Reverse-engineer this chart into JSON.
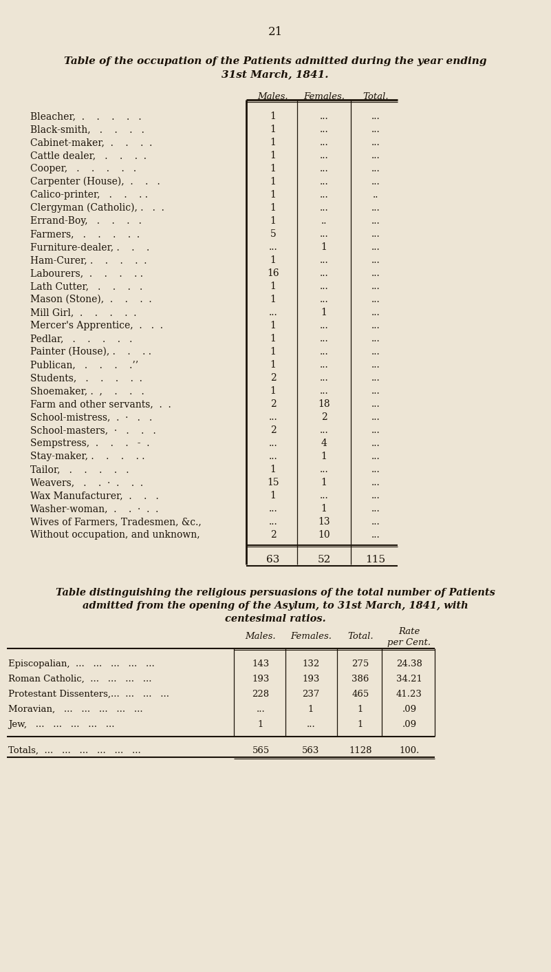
{
  "page_number": "21",
  "title1": "Table of the occupation of the Patients admitted during the year ending",
  "title2": "31st March, 1841.",
  "bg_color": "#ede5d5",
  "text_color": "#1a1208",
  "table1_rows": [
    [
      "Bleacher,  .    .    .    .   .",
      "1",
      "...",
      "..."
    ],
    [
      "Black-smith,   .    .    .   .",
      "1",
      "...",
      "..."
    ],
    [
      "Cabinet-maker,  .    .    .  .",
      "1",
      "...",
      "..."
    ],
    [
      "Cattle dealer,   .    .    .  .",
      "1",
      "...",
      "..."
    ],
    [
      "Cooper,   .    .    .    .   .",
      "1",
      "...",
      "..."
    ],
    [
      "Carpenter (House),  .    .   .",
      "1",
      "...",
      "..."
    ],
    [
      "Calico-printer,   .    .    . .",
      "1",
      "...",
      ".."
    ],
    [
      "Clergyman (Catholic), .   .  .",
      "1",
      "...",
      "..."
    ],
    [
      "Errand-Boy,   .    .    .   .",
      "1",
      "..",
      "..."
    ],
    [
      "Farmers,   .    .    .    .  .",
      "5",
      "...",
      "..."
    ],
    [
      "Furniture-dealer, .    .    .",
      "...",
      "1",
      "..."
    ],
    [
      "Ham-Curer, .    .    .    .  .",
      "1",
      "...",
      "..."
    ],
    [
      "Labourers,  .    .    .    . .",
      "16",
      "...",
      "..."
    ],
    [
      "Lath Cutter,   .    .    .   .",
      "1",
      "...",
      "..."
    ],
    [
      "Mason (Stone),  .    .    .  .",
      "1",
      "...",
      "..."
    ],
    [
      "Mill Girl,  .    .    .    .  .",
      "...",
      "1",
      "..."
    ],
    [
      "Mercer's Apprentice,  .   .  .",
      "1",
      "...",
      "..."
    ],
    [
      "Pedlar,   .    .    .    .   .",
      "1",
      "...",
      "..."
    ],
    [
      "Painter (House), .    .    . .",
      "1",
      "...",
      "..."
    ],
    [
      "Publican,   .    .    .    .’’",
      "1",
      "...",
      "..."
    ],
    [
      "Students,   .    .    .    .  .",
      "2",
      "...",
      "..."
    ],
    [
      "Shoemaker, .  ,    .    .   .",
      "1",
      "...",
      "..."
    ],
    [
      "Farm and other servants,  .  .",
      "2",
      "18",
      "..."
    ],
    [
      "School-mistress,  .  ·   .   .",
      "...",
      "2",
      "..."
    ],
    [
      "School-masters,  ·   .    .   .",
      "2",
      "...",
      "..."
    ],
    [
      "Sempstress,  .    .    .   -  .",
      "...",
      "4",
      "..."
    ],
    [
      "Stay-maker, .    .    .    . .",
      "...",
      "1",
      "..."
    ],
    [
      "Tailor,   .    .    .    .   .",
      "1",
      "...",
      "..."
    ],
    [
      "Weavers,   .    .  ·  .    .  .",
      "15",
      "1",
      "..."
    ],
    [
      "Wax Manufacturer,  .    .   .",
      "1",
      "...",
      "..."
    ],
    [
      "Washer-woman,  .    .  ·  .  .",
      "...",
      "1",
      "..."
    ],
    [
      "Wives of Farmers, Tradesmen, &c.,",
      "...",
      "13",
      "..."
    ],
    [
      "Without occupation, and unknown,",
      "2",
      "10",
      "..."
    ]
  ],
  "table1_totals": [
    "63",
    "52",
    "115"
  ],
  "title3_line1": "Table distinguishing the religious persuasions of the total number of Patients",
  "title3_line2": "admitted from the opening of the Asylum, to 31st March, 1841, with",
  "title3_line3": "centesimal ratios.",
  "table2_rows": [
    [
      "Episcopalian,  ...   ...   ...   ...   ...",
      "143",
      "132",
      "275",
      "24.38"
    ],
    [
      "Roman Catholic,  ...   ...   ...   ...",
      "193",
      "193",
      "386",
      "34.21"
    ],
    [
      "Protestant Dissenters,...  ...   ...   ...",
      "228",
      "237",
      "465",
      "41.23"
    ],
    [
      "Moravian,   ...   ...   ...   ...   ...",
      "...",
      "1",
      "1",
      ".09"
    ],
    [
      "Jew,   ...   ...   ...   ...   ...",
      "1",
      "...",
      "1",
      ".09"
    ]
  ],
  "table2_totals": [
    "Totals,  ...   ...   ...   ...   ...   ...",
    "565",
    "563",
    "1128",
    "100."
  ]
}
